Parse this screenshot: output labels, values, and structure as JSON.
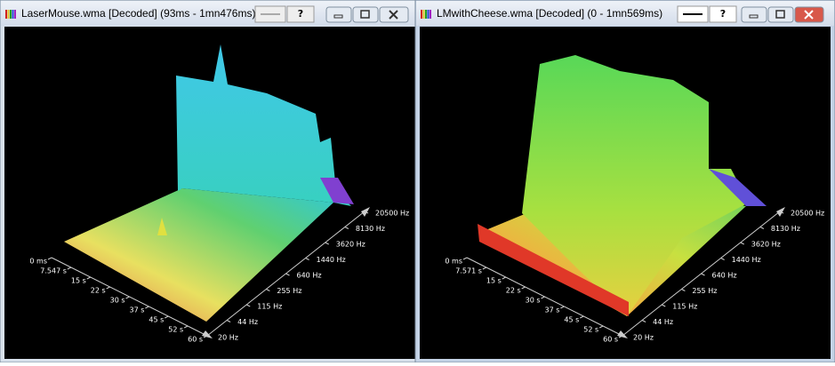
{
  "windows": [
    {
      "title": "LaserMouse.wma [Decoded] (93ms - 1mn476ms)",
      "help_button": "?",
      "time_labels": [
        "0 ms",
        "7.547 s",
        "15 s",
        "22 s",
        "30 s",
        "37 s",
        "45 s",
        "52 s",
        "60 s"
      ],
      "freq_labels": [
        "20 Hz",
        "44 Hz",
        "115 Hz",
        "255 Hz",
        "640 Hz",
        "1440 Hz",
        "3620 Hz",
        "8130 Hz",
        "20500 Hz"
      ]
    },
    {
      "title": "LMwithCheese.wma [Decoded] (0 - 1mn569ms)",
      "help_button": "?",
      "time_labels": [
        "0 ms",
        "7.571 s",
        "15 s",
        "22 s",
        "30 s",
        "37 s",
        "45 s",
        "52 s",
        "60 s"
      ],
      "freq_labels": [
        "20 Hz",
        "44 Hz",
        "115 Hz",
        "255 Hz",
        "640 Hz",
        "1440 Hz",
        "3620 Hz",
        "8130 Hz",
        "20500 Hz"
      ]
    }
  ]
}
